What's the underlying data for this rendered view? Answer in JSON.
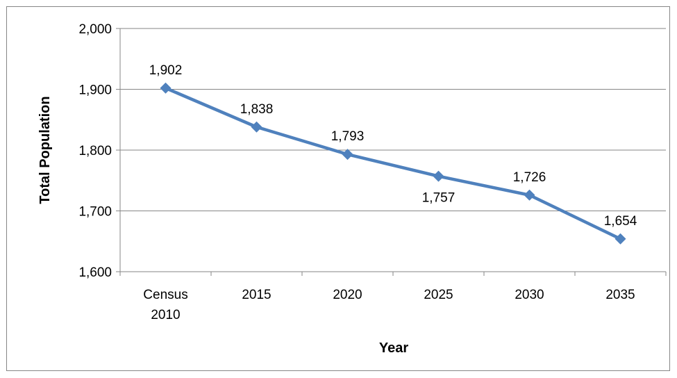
{
  "chart_data": {
    "type": "line",
    "categories": [
      [
        "Census",
        "2010"
      ],
      [
        "2015"
      ],
      [
        "2020"
      ],
      [
        "2025"
      ],
      [
        "2030"
      ],
      [
        "2035"
      ]
    ],
    "series": [
      {
        "values": [
          1902,
          1838,
          1793,
          1757,
          1726,
          1654
        ],
        "labels": [
          "1,902",
          "1,838",
          "1,793",
          "1,757",
          "1,726",
          "1,654"
        ],
        "label_positions": [
          "above",
          "above",
          "above",
          "below",
          "above",
          "above"
        ],
        "color": "#4f81bd",
        "marker": "diamond"
      }
    ],
    "xlabel": "Year",
    "ylabel": "Total Population",
    "ylim": [
      1600,
      2000
    ],
    "yticks": [
      1600,
      1700,
      1800,
      1900,
      2000
    ],
    "ytick_labels": [
      "1,600",
      "1,700",
      "1,800",
      "1,900",
      "2,000"
    ],
    "grid": true,
    "legend": "none"
  }
}
